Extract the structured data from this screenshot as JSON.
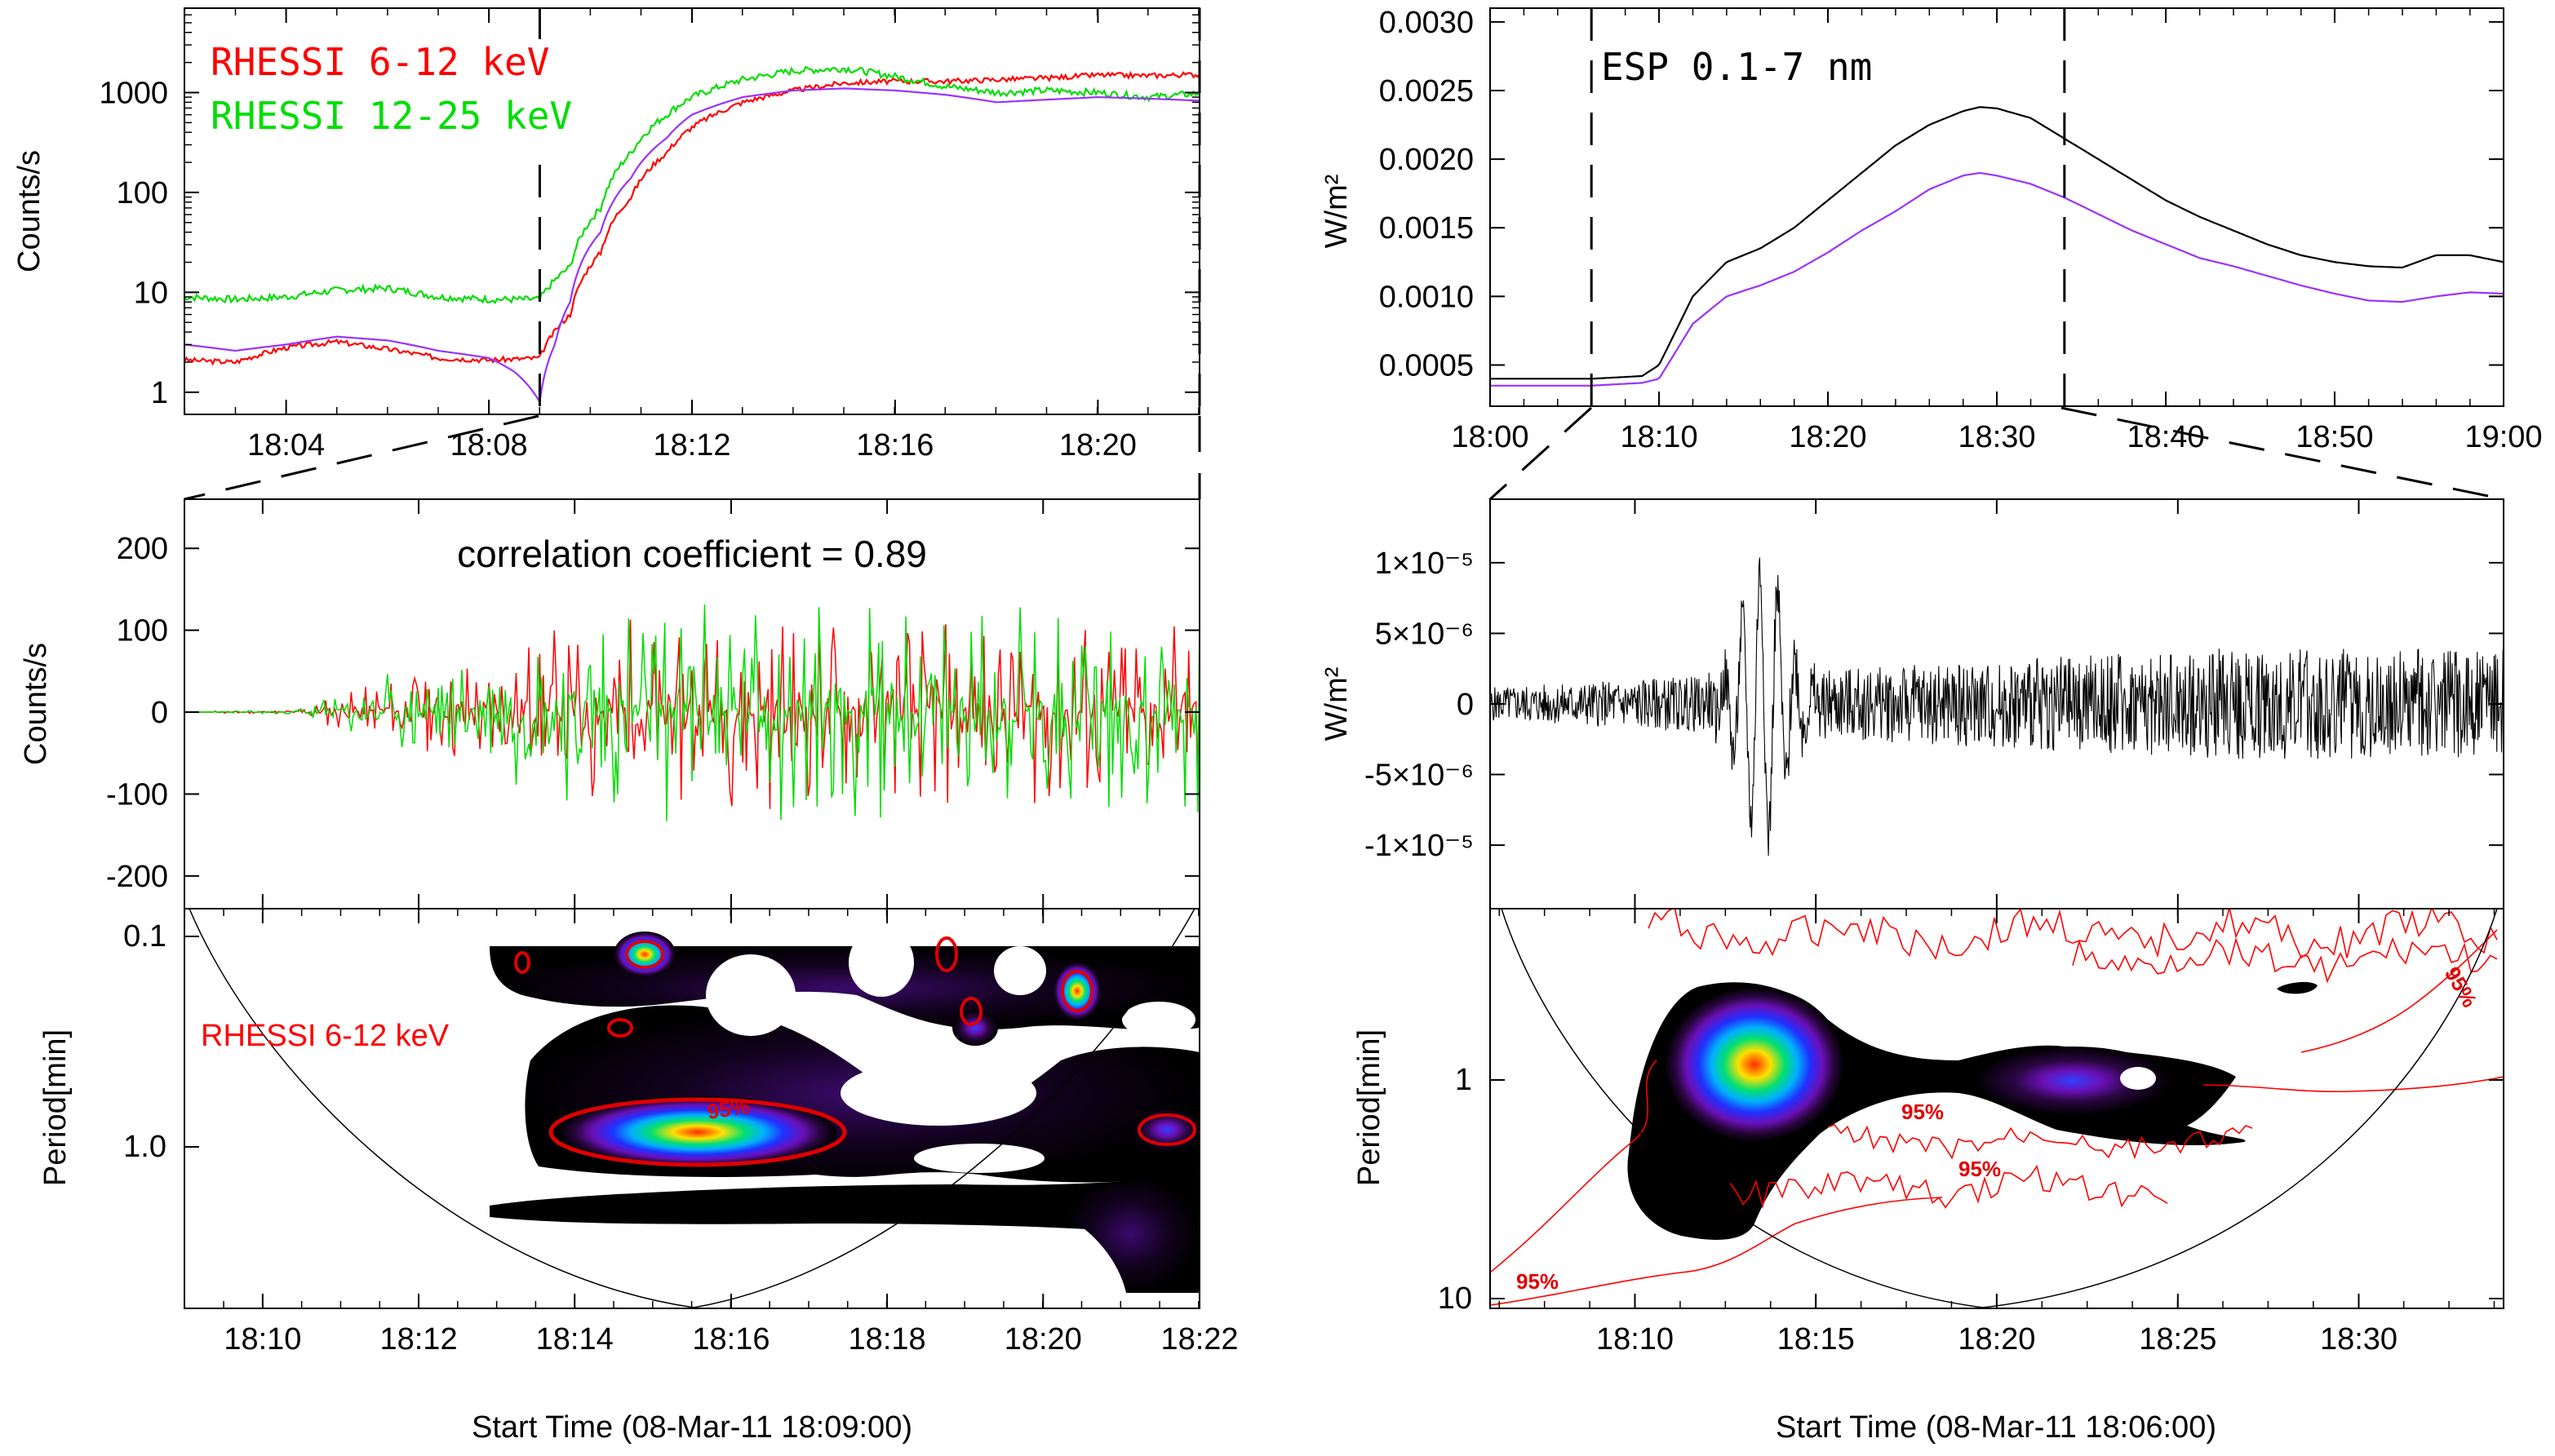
{
  "chart_data": [
    {
      "id": "A",
      "type": "line",
      "yscale": "log",
      "ylabel": "Counts/s",
      "xlim": [
        18.0333,
        18.3667
      ],
      "ylim": [
        0.6,
        7000
      ],
      "x_ticks": [
        {
          "v": 18.0667,
          "label": "18:04"
        },
        {
          "v": 18.1333,
          "label": "18:08"
        },
        {
          "v": 18.2,
          "label": "18:12"
        },
        {
          "v": 18.2667,
          "label": "18:16"
        },
        {
          "v": 18.3333,
          "label": "18:20"
        }
      ],
      "y_ticks": [
        {
          "v": 1,
          "label": "1"
        },
        {
          "v": 10,
          "label": "10"
        },
        {
          "v": 100,
          "label": "100"
        },
        {
          "v": 1000,
          "label": "1000"
        }
      ],
      "legend": [
        {
          "text": "RHESSI 6-12 keV",
          "color": "#ff0000"
        },
        {
          "text": "RHESSI 12-25 keV",
          "color": "#00dd00"
        }
      ],
      "dashed_x": [
        18.15,
        18.3667
      ],
      "series": [
        {
          "name": "RHESSI 6-12 keV",
          "color": "#ff0000",
          "noise": 0.06,
          "seed": 3,
          "x": [
            18.0333,
            18.05,
            18.0667,
            18.0833,
            18.1,
            18.1167,
            18.1333,
            18.15,
            18.16,
            18.17,
            18.18,
            18.1917,
            18.2,
            18.2167,
            18.2333,
            18.25,
            18.2667,
            18.2833,
            18.3,
            18.3167,
            18.3333,
            18.35,
            18.3667
          ],
          "y": [
            2.1,
            2.0,
            2.8,
            3.2,
            2.7,
            2.2,
            2.1,
            2.2,
            6,
            25,
            90,
            250,
            450,
            800,
            1050,
            1250,
            1300,
            1300,
            1350,
            1400,
            1500,
            1480,
            1520
          ]
        },
        {
          "name": "RHESSI 12-25 keV",
          "color": "#00dd00",
          "noise": 0.08,
          "seed": 7,
          "x": [
            18.0333,
            18.05,
            18.0667,
            18.0833,
            18.1,
            18.1167,
            18.1333,
            18.15,
            18.16,
            18.17,
            18.18,
            18.1917,
            18.2,
            18.2167,
            18.2333,
            18.25,
            18.2667,
            18.2833,
            18.3,
            18.3167,
            18.3333,
            18.35,
            18.3667
          ],
          "y": [
            9,
            8.5,
            9,
            10.5,
            11,
            9,
            8.5,
            8.5,
            18,
            70,
            250,
            600,
            900,
            1350,
            1650,
            1750,
            1450,
            1150,
            1000,
            1050,
            1000,
            900,
            980
          ]
        },
        {
          "name": "smoothed",
          "color": "#9933ff",
          "noise": 0,
          "seed": 1,
          "x": [
            18.0333,
            18.05,
            18.0667,
            18.0833,
            18.1,
            18.1167,
            18.1333,
            18.1417,
            18.15,
            18.155,
            18.16,
            18.17,
            18.18,
            18.1917,
            18.2,
            18.2167,
            18.2333,
            18.25,
            18.2667,
            18.2833,
            18.3,
            18.3167,
            18.3333,
            18.35,
            18.3667
          ],
          "y": [
            3.0,
            2.6,
            3.0,
            3.6,
            3.3,
            2.6,
            2.2,
            1.6,
            0.8,
            3,
            8,
            40,
            140,
            350,
            600,
            900,
            1050,
            1100,
            1050,
            950,
            800,
            850,
            900,
            870,
            830
          ]
        }
      ]
    },
    {
      "id": "B",
      "type": "line",
      "ylabel": "W/m²",
      "xlim": [
        18.0,
        19.0
      ],
      "ylim": [
        0.0002,
        0.0031
      ],
      "x_ticks": [
        {
          "v": 18.0,
          "label": "18:00"
        },
        {
          "v": 18.1667,
          "label": "18:10"
        },
        {
          "v": 18.3333,
          "label": "18:20"
        },
        {
          "v": 18.5,
          "label": "18:30"
        },
        {
          "v": 18.6667,
          "label": "18:40"
        },
        {
          "v": 18.8333,
          "label": "18:50"
        },
        {
          "v": 19.0,
          "label": "19:00"
        }
      ],
      "y_ticks": [
        {
          "v": 0.0005,
          "label": "0.0005"
        },
        {
          "v": 0.001,
          "label": "0.0010"
        },
        {
          "v": 0.0015,
          "label": "0.0015"
        },
        {
          "v": 0.002,
          "label": "0.0020"
        },
        {
          "v": 0.0025,
          "label": "0.0025"
        },
        {
          "v": 0.003,
          "label": "0.0030"
        }
      ],
      "legend": [
        {
          "text": "ESP 0.1-7 nm",
          "color": "#000000"
        }
      ],
      "dashed_x": [
        18.1,
        18.5667
      ],
      "series": [
        {
          "name": "ESP 0.1-7 nm",
          "color": "#000000",
          "x": [
            18.0,
            18.05,
            18.1,
            18.15,
            18.1667,
            18.2,
            18.2333,
            18.2667,
            18.3,
            18.3333,
            18.3667,
            18.4,
            18.4333,
            18.4667,
            18.4833,
            18.5,
            18.5333,
            18.5667,
            18.6,
            18.6333,
            18.6667,
            18.7,
            18.7333,
            18.7667,
            18.8,
            18.8333,
            18.8667,
            18.9,
            18.9333,
            18.9667,
            19.0
          ],
          "y": [
            0.0004,
            0.0004,
            0.0004,
            0.00042,
            0.0005,
            0.001,
            0.00125,
            0.00135,
            0.0015,
            0.0017,
            0.0019,
            0.0021,
            0.00225,
            0.00235,
            0.00238,
            0.00237,
            0.0023,
            0.00215,
            0.002,
            0.00185,
            0.0017,
            0.00158,
            0.00148,
            0.00138,
            0.0013,
            0.00125,
            0.00122,
            0.00121,
            0.0013,
            0.0013,
            0.00125
          ]
        },
        {
          "name": "smoothed",
          "color": "#9933ff",
          "x": [
            18.0,
            18.05,
            18.1,
            18.15,
            18.1667,
            18.2,
            18.2333,
            18.2667,
            18.3,
            18.3333,
            18.3667,
            18.4,
            18.4333,
            18.4667,
            18.4833,
            18.5,
            18.5333,
            18.5667,
            18.6,
            18.6333,
            18.6667,
            18.7,
            18.7333,
            18.7667,
            18.8,
            18.8333,
            18.8667,
            18.9,
            18.9333,
            18.9667,
            19.0
          ],
          "y": [
            0.00035,
            0.00035,
            0.00035,
            0.00037,
            0.0004,
            0.0008,
            0.001,
            0.00108,
            0.00118,
            0.00132,
            0.00148,
            0.00162,
            0.00178,
            0.00188,
            0.0019,
            0.00188,
            0.00182,
            0.00172,
            0.0016,
            0.00148,
            0.00138,
            0.00128,
            0.00122,
            0.00115,
            0.00108,
            0.00102,
            0.00097,
            0.00096,
            0.001,
            0.00103,
            0.00102
          ]
        }
      ]
    },
    {
      "id": "C",
      "type": "line",
      "ylabel": "Counts/s",
      "title": "correlation coefficient = 0.89",
      "xlim": [
        18.15,
        18.3667
      ],
      "ylim": [
        -240,
        260
      ],
      "y_ticks": [
        {
          "v": -200,
          "label": "-200"
        },
        {
          "v": -100,
          "label": "-100"
        },
        {
          "v": 0,
          "label": "0"
        },
        {
          "v": 100,
          "label": "100"
        },
        {
          "v": 200,
          "label": "200"
        }
      ],
      "series": [
        {
          "name": "RHESSI 6-12 keV (detrended)",
          "color": "#ff0000",
          "amp_min": 2,
          "amp_max": 120,
          "seed": 11
        },
        {
          "name": "RHESSI 12-25 keV (detrended)",
          "color": "#00dd00",
          "amp_min": 2,
          "amp_max": 140,
          "seed": 23
        }
      ]
    },
    {
      "id": "D",
      "type": "line",
      "ylabel": "W/m²",
      "xlim": [
        18.1,
        18.5667
      ],
      "ylim": [
        -1.45e-05,
        1.45e-05
      ],
      "y_ticks": [
        {
          "v": -1e-05,
          "label": "-1×10⁻⁵"
        },
        {
          "v": -5e-06,
          "label": "-5×10⁻⁶"
        },
        {
          "v": 0,
          "label": "0"
        },
        {
          "v": 5e-06,
          "label": "5×10⁻⁶"
        },
        {
          "v": 1e-05,
          "label": "1×10⁻⁵"
        }
      ],
      "series": [
        {
          "name": "ESP 0.1-7 nm (detrended)",
          "color": "#000000",
          "amp_min": 1.2e-06,
          "amp_max": 9e-06,
          "seed": 5
        }
      ]
    },
    {
      "id": "E",
      "type": "heatmap",
      "ylabel": "Period[min]",
      "xlabel": "Start Time (08-Mar-11 18:09:00)",
      "xlim": [
        18.15,
        18.3667
      ],
      "x_ticks": [
        {
          "v": 18.1667,
          "label": "18:10"
        },
        {
          "v": 18.2,
          "label": "18:12"
        },
        {
          "v": 18.2333,
          "label": "18:14"
        },
        {
          "v": 18.2667,
          "label": "18:16"
        },
        {
          "v": 18.3,
          "label": "18:18"
        },
        {
          "v": 18.3333,
          "label": "18:20"
        },
        {
          "v": 18.3667,
          "label": "18:22"
        }
      ],
      "y_ticks": [
        {
          "label": "0.1"
        },
        {
          "label": "1.0"
        }
      ],
      "label": "RHESSI 6-12 keV",
      "contour_label": "95%"
    },
    {
      "id": "F",
      "type": "heatmap",
      "ylabel": "Period[min]",
      "xlabel": "Start Time (08-Mar-11 18:06:00)",
      "xlim": [
        18.1,
        18.5667
      ],
      "x_ticks": [
        {
          "v": 18.1667,
          "label": "18:10"
        },
        {
          "v": 18.25,
          "label": "18:15"
        },
        {
          "v": 18.3333,
          "label": "18:20"
        },
        {
          "v": 18.4167,
          "label": "18:25"
        },
        {
          "v": 18.5,
          "label": "18:30"
        }
      ],
      "y_ticks": [
        {
          "label": "1"
        },
        {
          "label": "10"
        }
      ],
      "contour_labels": [
        "95%",
        "95%",
        "95%",
        "95%"
      ]
    }
  ]
}
